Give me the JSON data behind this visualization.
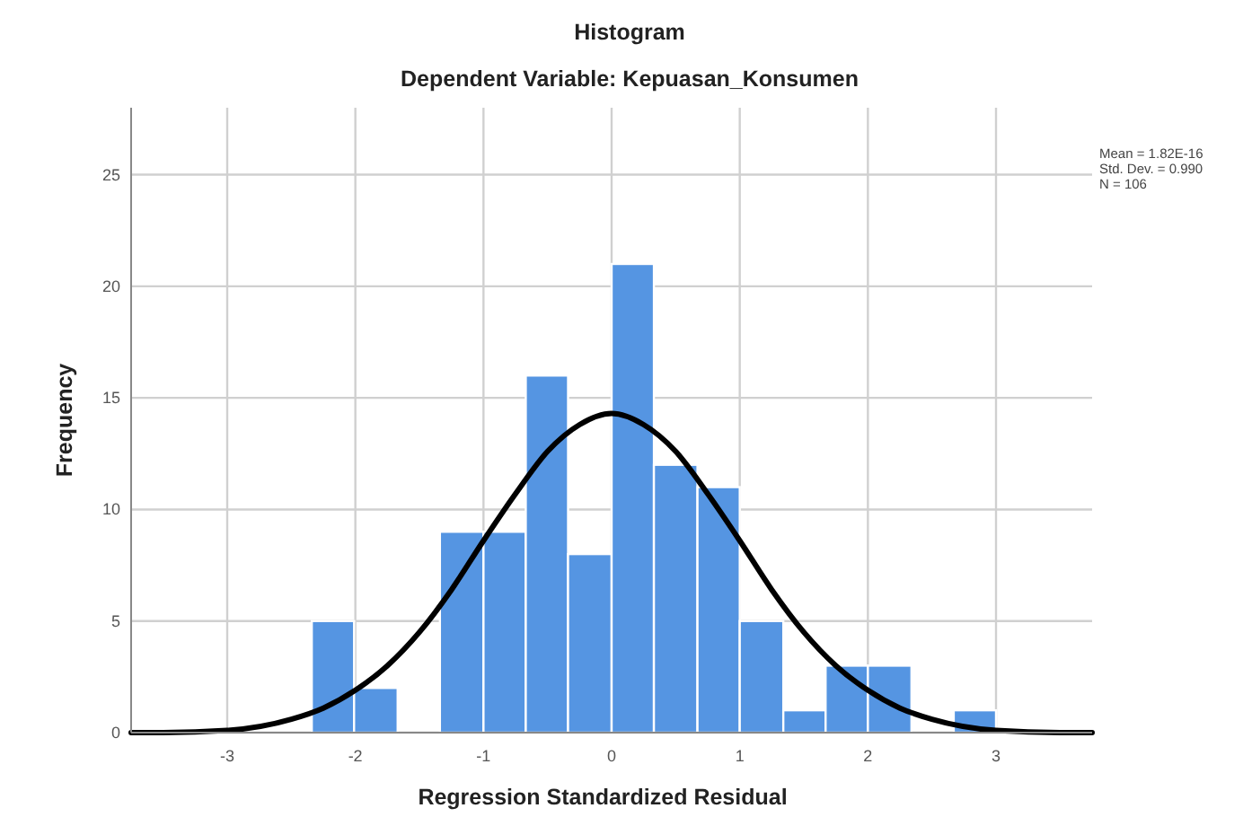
{
  "chart_data": {
    "type": "histogram",
    "title": "Histogram",
    "subtitle": "Dependent Variable: Kepuasan_Konsumen",
    "xlabel": "Regression Standardized Residual",
    "ylabel": "Frequency",
    "bins": [
      -2.34,
      -2.01,
      -1.67,
      -1.34,
      -1.0,
      -0.67,
      -0.34,
      0.0,
      0.33,
      0.67,
      1.0,
      1.34,
      1.67,
      2.0,
      2.34,
      2.67,
      3.0
    ],
    "values": [
      5,
      2,
      0,
      9,
      9,
      16,
      8,
      21,
      12,
      11,
      5,
      1,
      3,
      3,
      0,
      1
    ],
    "color": "#5595e2",
    "series": [
      {
        "type": "line",
        "color": "#000000",
        "x": [
          -3.75,
          -3.5,
          -3,
          -2.5,
          -2.25,
          -2,
          -1.75,
          -1.5,
          -1.25,
          -1,
          -0.75,
          -0.5,
          -0.25,
          0,
          0.25,
          0.5,
          0.75,
          1,
          1.25,
          1.5,
          1.75,
          2,
          2.25,
          2.5,
          3,
          3.5,
          3.75
        ],
        "values": [
          0,
          0,
          0.1,
          0.6,
          1.1,
          1.9,
          3,
          4.5,
          6.4,
          8.6,
          10.7,
          12.6,
          13.8,
          14.3,
          13.8,
          12.6,
          10.7,
          8.6,
          6.4,
          4.5,
          3,
          1.9,
          1.1,
          0.6,
          0.1,
          0,
          0
        ]
      }
    ],
    "xlim": [
      -3.75,
      3.75
    ],
    "ylim": [
      0,
      28
    ],
    "xticks": [
      -3,
      -2,
      -1,
      0,
      1,
      2,
      3
    ],
    "yticks": [
      0,
      5,
      10,
      15,
      20,
      25
    ],
    "grid": true,
    "annotations": [
      "Mean = 1.82E-16",
      "Std. Dev. = 0.990",
      "N = 106"
    ]
  }
}
